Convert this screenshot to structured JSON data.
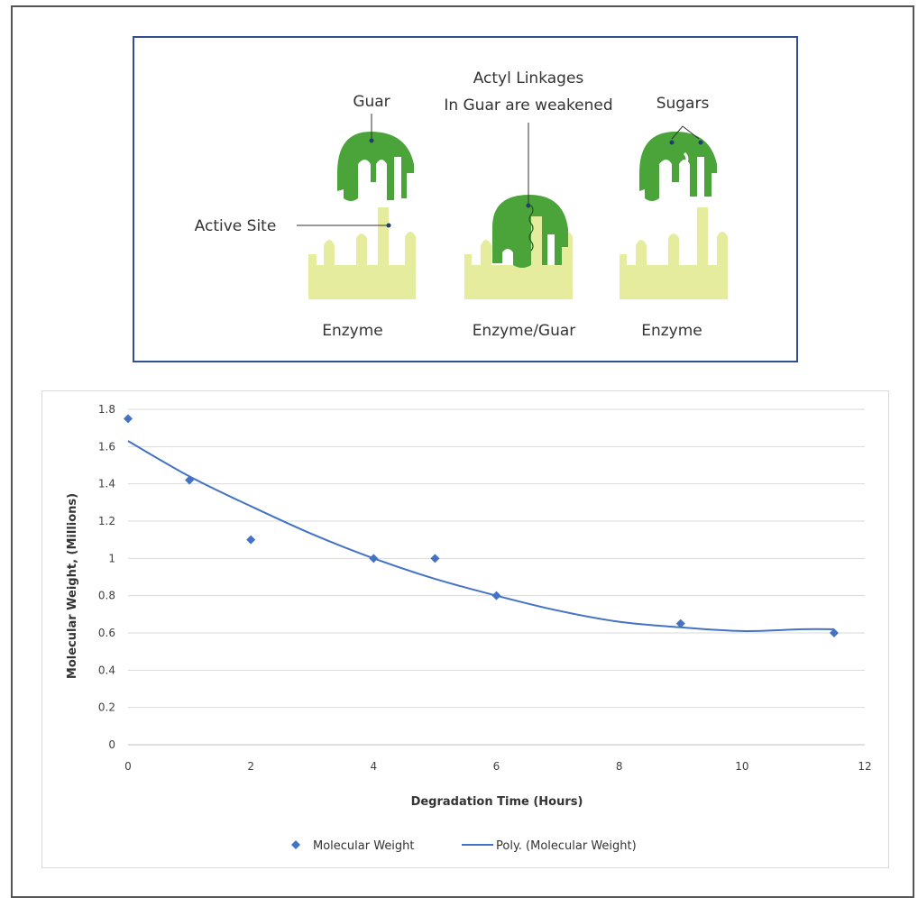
{
  "diagram": {
    "labels": {
      "guar": "Guar",
      "actyl_line1": "Actyl Linkages",
      "actyl_line2": "In Guar are weakened",
      "sugars": "Sugars",
      "active_site": "Active Site",
      "enzyme_left": "Enzyme",
      "enzyme_guar": "Enzyme/Guar",
      "enzyme_right": "Enzyme"
    },
    "colors": {
      "guar_green": "#4aa43a",
      "enzyme_yellow": "#e6ec9e",
      "frame_blue": "#2f4f8f"
    }
  },
  "chart_data": {
    "type": "scatter",
    "series": [
      {
        "name": "Molecular Weight",
        "marker": "diamond",
        "x": [
          0,
          1,
          2,
          4,
          5,
          6,
          9,
          11.5
        ],
        "y": [
          1.75,
          1.42,
          1.1,
          1.0,
          1.0,
          0.8,
          0.65,
          0.6
        ]
      }
    ],
    "trendline": {
      "name": "Poly. (Molecular Weight)",
      "kind": "polynomial",
      "x": [
        0,
        1,
        2,
        3,
        4,
        5,
        6,
        7,
        8,
        9,
        10,
        11,
        11.5
      ],
      "y": [
        1.63,
        1.44,
        1.28,
        1.13,
        1.0,
        0.89,
        0.8,
        0.72,
        0.66,
        0.63,
        0.61,
        0.62,
        0.62
      ]
    },
    "xlabel": "Degradation Time (Hours)",
    "ylabel": "Molecular Weight, (Millions)",
    "xlim": [
      0,
      12
    ],
    "ylim": [
      0,
      1.8
    ],
    "xticks": [
      "0",
      "2",
      "4",
      "6",
      "8",
      "10",
      "12"
    ],
    "yticks": [
      "0",
      "0.2",
      "0.4",
      "0.6",
      "0.8",
      "1",
      "1.2",
      "1.4",
      "1.6",
      "1.8"
    ],
    "xtick_values": [
      0,
      2,
      4,
      6,
      8,
      10,
      12
    ],
    "ytick_values": [
      0,
      0.2,
      0.4,
      0.6,
      0.8,
      1.0,
      1.2,
      1.4,
      1.6,
      1.8
    ],
    "grid": "horizontal",
    "legend_position": "bottom",
    "legend": [
      "Molecular Weight",
      "Poly. (Molecular Weight)"
    ],
    "color": "#4472c4"
  }
}
